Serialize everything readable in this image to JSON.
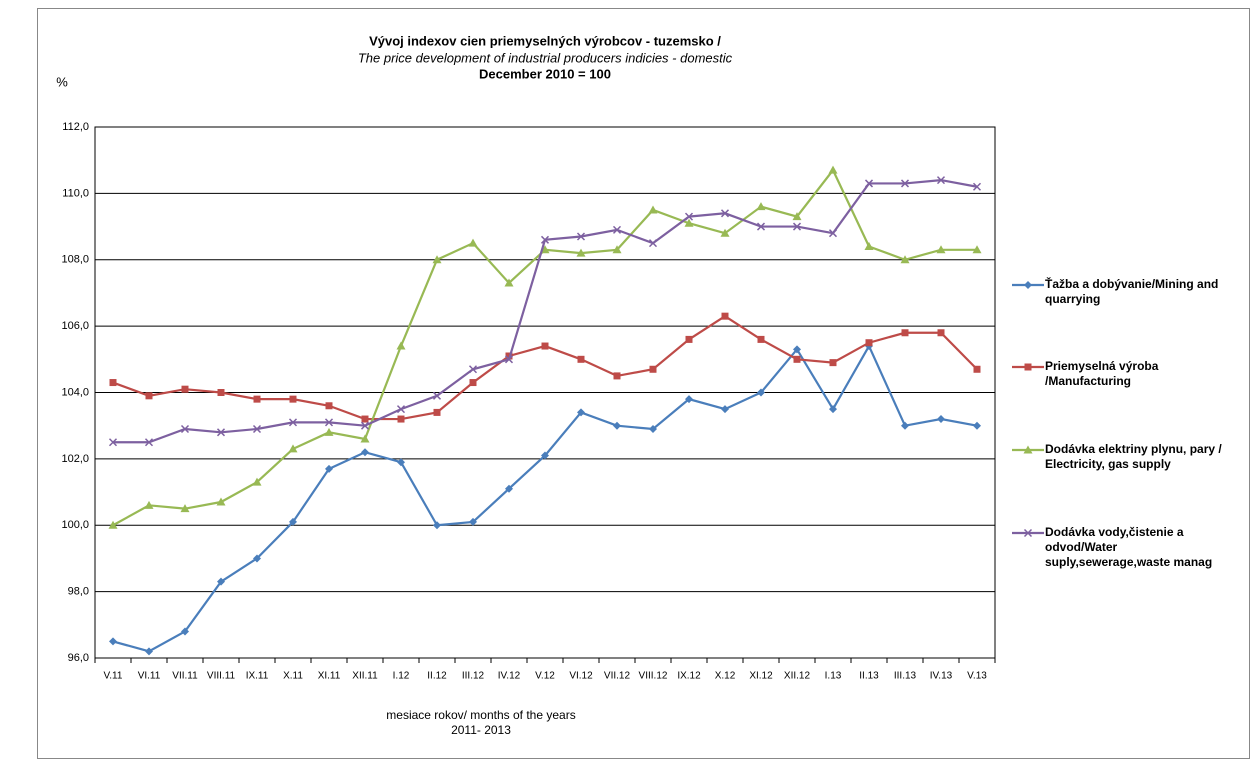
{
  "chart_data": {
    "type": "line",
    "title": "Vývoj indexov cien priemyselných výrobcov - tuzemsko /",
    "subtitle": "The price development of industrial producers indicies - domestic",
    "subtitle2": "December 2010 = 100",
    "y_unit": "%",
    "x_label": "mesiace rokov/ months of the years",
    "x_label2": "2011- 2013",
    "categories": [
      "V.11",
      "VI.11",
      "VII.11",
      "VIII.11",
      "IX.11",
      "X.11",
      "XI.11",
      "XII.11",
      "I.12",
      "II.12",
      "III.12",
      "IV.12",
      "V.12",
      "VI.12",
      "VII.12",
      "VIII.12",
      "IX.12",
      "X.12",
      "XI.12",
      "XII.12",
      "I.13",
      "II.13",
      "III.13",
      "IV.13",
      "V.13"
    ],
    "series": [
      {
        "name": "Ťažba a dobývanie/Mining and quarrying",
        "color": "#4a7ebb",
        "marker": "diamond",
        "values": [
          96.5,
          96.2,
          96.8,
          98.3,
          99.0,
          100.1,
          101.7,
          102.2,
          101.9,
          100.0,
          100.1,
          101.1,
          102.1,
          103.4,
          103.0,
          102.9,
          103.8,
          103.5,
          104.0,
          105.3,
          103.5,
          105.4,
          103.0,
          103.2,
          103.0
        ]
      },
      {
        "name": "Priemyselná výroba /Manufacturing",
        "color": "#be4b48",
        "marker": "square",
        "values": [
          104.3,
          103.9,
          104.1,
          104.0,
          103.8,
          103.8,
          103.6,
          103.2,
          103.2,
          103.4,
          104.3,
          105.1,
          105.4,
          105.0,
          104.5,
          104.7,
          105.6,
          106.3,
          105.6,
          105.0,
          104.9,
          105.5,
          105.8,
          105.8,
          104.7
        ]
      },
      {
        "name": "Dodávka elektriny plynu, pary / Electricity, gas supply",
        "color": "#98b954",
        "marker": "triangle",
        "values": [
          100.0,
          100.6,
          100.5,
          100.7,
          101.3,
          102.3,
          102.8,
          102.6,
          105.4,
          108.0,
          108.5,
          107.3,
          108.3,
          108.2,
          108.3,
          109.5,
          109.1,
          108.8,
          109.6,
          109.3,
          110.7,
          108.4,
          108.0,
          108.3,
          108.3
        ]
      },
      {
        "name": "Dodávka vody,čistenie a odvod/Water suply,sewerage,waste manag",
        "color": "#7d60a0",
        "marker": "x",
        "values": [
          102.5,
          102.5,
          102.9,
          102.8,
          102.9,
          103.1,
          103.1,
          103.0,
          103.5,
          103.9,
          104.7,
          105.0,
          108.6,
          108.7,
          108.9,
          108.5,
          109.3,
          109.4,
          109.0,
          109.0,
          108.8,
          110.3,
          110.3,
          110.4,
          110.2
        ]
      }
    ],
    "ylim": [
      96,
      112
    ],
    "yticks": [
      {
        "value": 96,
        "label": "96,0"
      },
      {
        "value": 98,
        "label": "98,0"
      },
      {
        "value": 100,
        "label": "100,0"
      },
      {
        "value": 102,
        "label": "102,0"
      },
      {
        "value": 104,
        "label": "104,0"
      },
      {
        "value": 106,
        "label": "106,0"
      },
      {
        "value": 108,
        "label": "108,0"
      },
      {
        "value": 110,
        "label": "110,0"
      },
      {
        "value": 112,
        "label": "112,0"
      }
    ],
    "grid": true,
    "legend": "right"
  }
}
